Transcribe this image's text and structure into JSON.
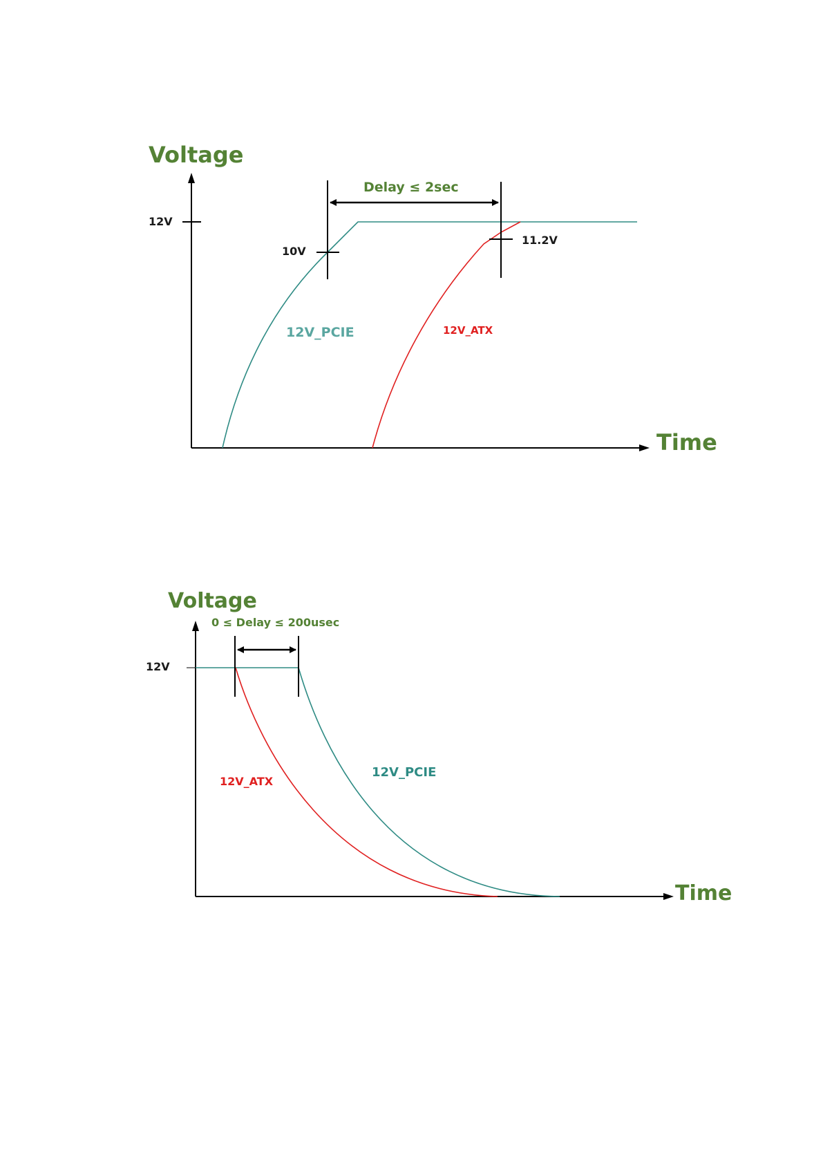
{
  "colors": {
    "pcie": "#2e8b84",
    "atx": "#e02020",
    "axis_title": "#548235",
    "axis": "#000000"
  },
  "power_up": {
    "y_axis_title": "Voltage",
    "x_axis_title": "Time",
    "v12_label": "12V",
    "v10_label": "10V",
    "v112_label": "11.2V",
    "delay_label": "Delay  ≤ 2sec",
    "pcie_label": "12V_PCIE",
    "atx_label": "12V_ATX"
  },
  "power_down": {
    "y_axis_title": "Voltage",
    "x_axis_title": "Time",
    "v12_label": "12V",
    "delay_label": "0  ≤  Delay  ≤ 200usec",
    "pcie_label": "12V_PCIE",
    "atx_label": "12V_ATX"
  }
}
